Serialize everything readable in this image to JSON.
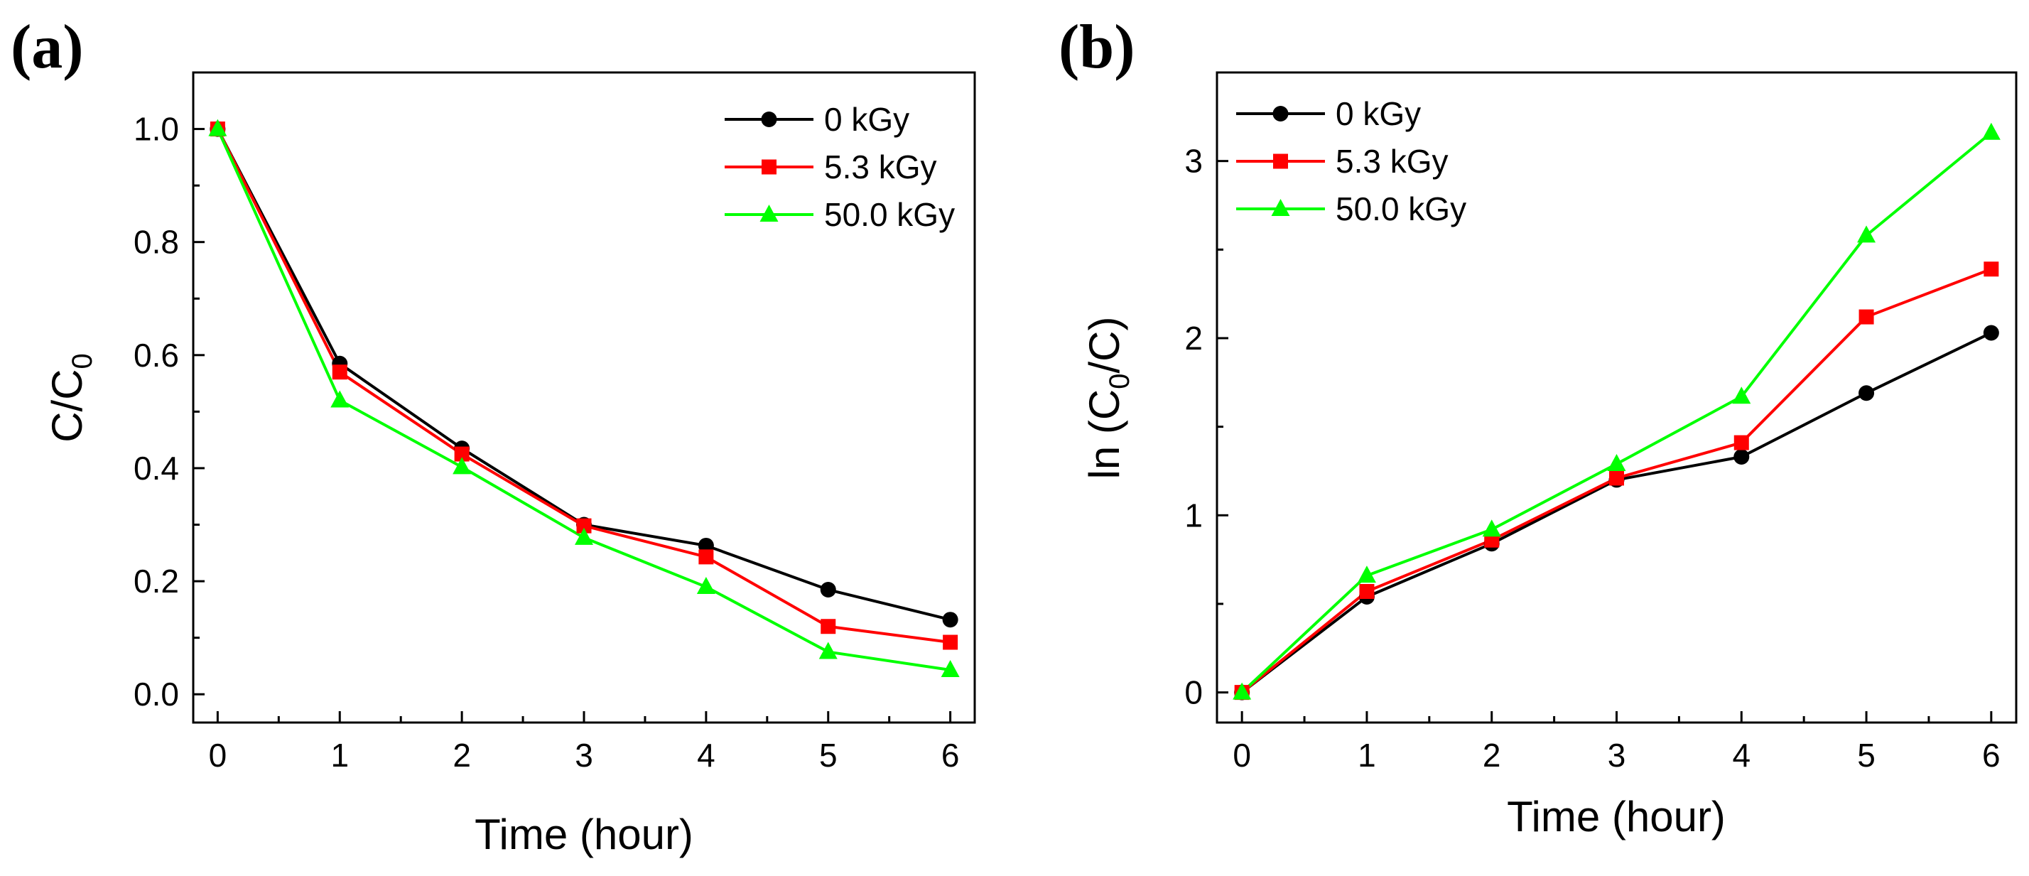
{
  "chart_data": [
    {
      "type": "line",
      "panel_label": "(a)",
      "xlabel": "Time (hour)",
      "ylabel": "C/C",
      "ylabel_sub": "0",
      "x": [
        0,
        1,
        2,
        3,
        4,
        5,
        6
      ],
      "xlim": [
        -0.2,
        6.2
      ],
      "xticks": [
        "0",
        "1",
        "2",
        "3",
        "4",
        "5",
        "6"
      ],
      "xtick_values": [
        0,
        1,
        2,
        3,
        4,
        5,
        6
      ],
      "ylim": [
        -0.05,
        1.1
      ],
      "yticks": [
        "0.0",
        "0.2",
        "0.4",
        "0.6",
        "0.8",
        "1.0"
      ],
      "ytick_values": [
        0,
        0.2,
        0.4,
        0.6,
        0.8,
        1.0
      ],
      "legend_position": "top-right",
      "series": [
        {
          "name": "0 kGy",
          "color": "#000000",
          "marker": "circle",
          "values": [
            1.0,
            0.585,
            0.435,
            0.3,
            0.263,
            0.185,
            0.132
          ]
        },
        {
          "name": "5.3 kGy",
          "color": "#ff0000",
          "marker": "square",
          "values": [
            1.0,
            0.57,
            0.425,
            0.298,
            0.243,
            0.12,
            0.092
          ]
        },
        {
          "name": "50.0 kGy",
          "color": "#00ff00",
          "marker": "triangle",
          "values": [
            1.0,
            0.52,
            0.402,
            0.277,
            0.19,
            0.075,
            0.043
          ]
        }
      ]
    },
    {
      "type": "line",
      "panel_label": "(b)",
      "xlabel": "Time (hour)",
      "ylabel": "ln (C",
      "ylabel_sub": "0",
      "ylabel_tail": "/C)",
      "x": [
        0,
        1,
        2,
        3,
        4,
        5,
        6
      ],
      "xlim": [
        -0.2,
        6.2
      ],
      "xticks": [
        "0",
        "1",
        "2",
        "3",
        "4",
        "5",
        "6"
      ],
      "xtick_values": [
        0,
        1,
        2,
        3,
        4,
        5,
        6
      ],
      "ylim": [
        -0.17,
        3.5
      ],
      "yticks": [
        "0",
        "1",
        "2",
        "3"
      ],
      "ytick_values": [
        0,
        1,
        2,
        3
      ],
      "legend_position": "top-left",
      "series": [
        {
          "name": "0 kGy",
          "color": "#000000",
          "marker": "circle",
          "values": [
            0,
            0.54,
            0.84,
            1.2,
            1.33,
            1.69,
            2.03
          ]
        },
        {
          "name": "5.3 kGy",
          "color": "#ff0000",
          "marker": "square",
          "values": [
            0,
            0.57,
            0.86,
            1.21,
            1.41,
            2.12,
            2.39
          ]
        },
        {
          "name": "50.0 kGy",
          "color": "#00ff00",
          "marker": "triangle",
          "values": [
            0,
            0.66,
            0.92,
            1.29,
            1.67,
            2.58,
            3.16
          ]
        }
      ]
    }
  ]
}
